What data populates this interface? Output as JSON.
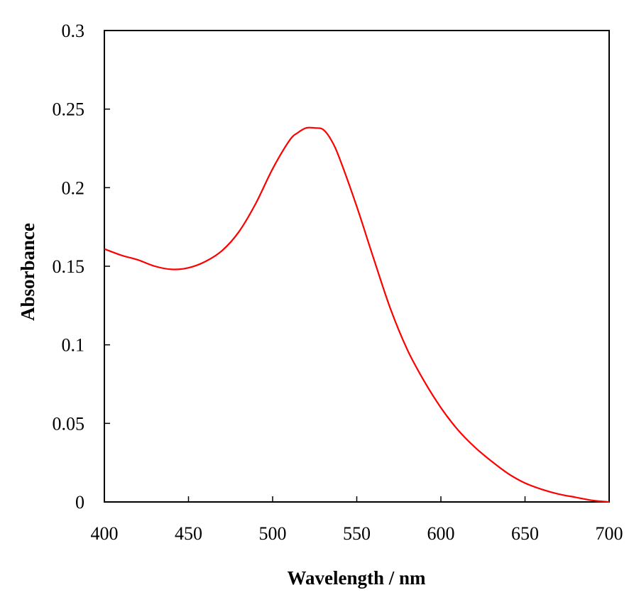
{
  "chart_data": {
    "type": "line",
    "xlabel": "Wavelength / nm",
    "ylabel": "Absorbance",
    "xlim": [
      400,
      700
    ],
    "ylim": [
      0,
      0.3
    ],
    "x_ticks": [
      "400",
      "450",
      "500",
      "550",
      "600",
      "650",
      "700"
    ],
    "y_ticks": [
      "0",
      "0.05",
      "0.1",
      "0.15",
      "0.2",
      "0.25",
      "0.3"
    ],
    "grid": false,
    "legend": "none",
    "series": [
      {
        "color": "#ff0000",
        "x": [
          400,
          410,
          420,
          430,
          440,
          450,
          460,
          470,
          480,
          490,
          500,
          510,
          515,
          520,
          525,
          530,
          535,
          540,
          550,
          560,
          570,
          580,
          590,
          600,
          610,
          620,
          630,
          640,
          650,
          660,
          670,
          680,
          690,
          700
        ],
        "y": [
          0.161,
          0.157,
          0.154,
          0.15,
          0.148,
          0.149,
          0.153,
          0.16,
          0.172,
          0.19,
          0.212,
          0.23,
          0.235,
          0.238,
          0.238,
          0.237,
          0.23,
          0.218,
          0.188,
          0.155,
          0.123,
          0.097,
          0.077,
          0.06,
          0.046,
          0.035,
          0.026,
          0.018,
          0.012,
          0.008,
          0.005,
          0.003,
          0.001,
          0.0
        ]
      }
    ]
  }
}
